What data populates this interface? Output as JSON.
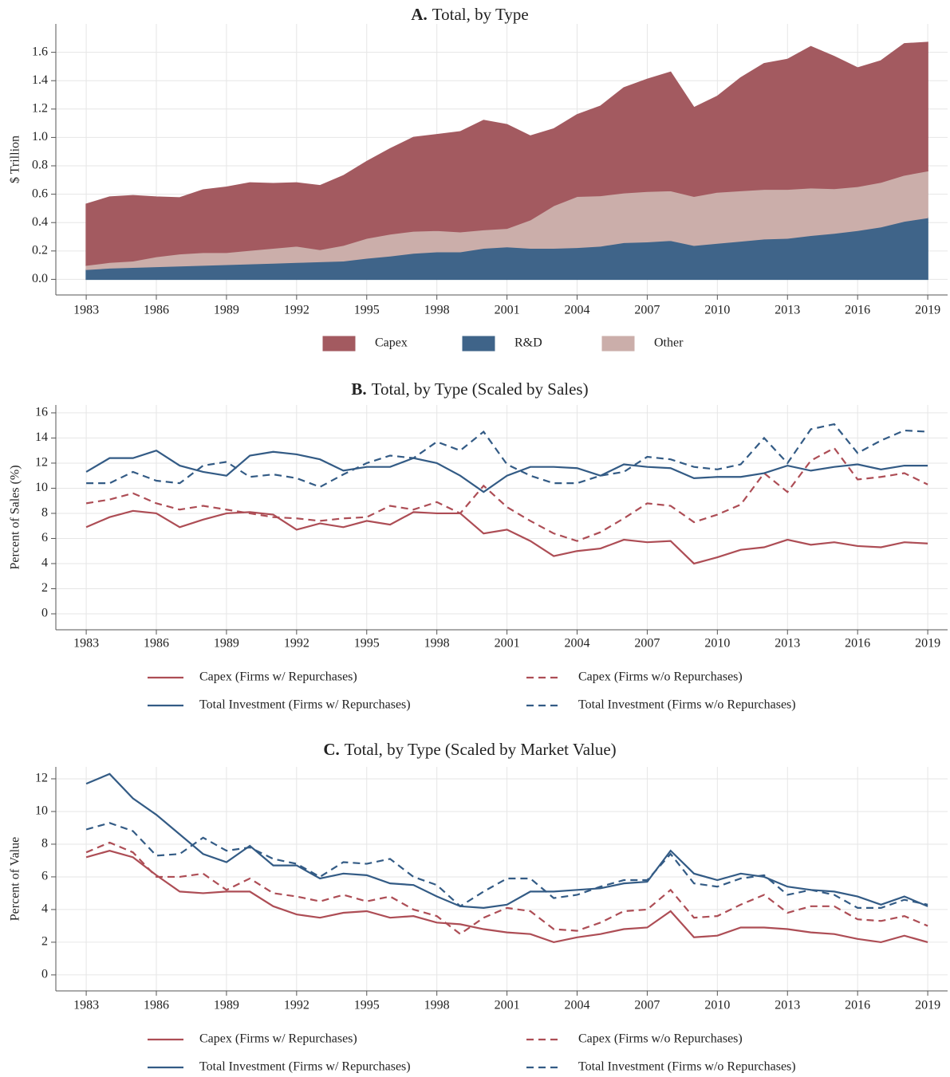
{
  "chart_data": [
    {
      "type": "area",
      "stacked": true,
      "panel": "A.",
      "title": "Total, by Type",
      "ylabel": "$ Trillion",
      "x": [
        1983,
        1984,
        1985,
        1986,
        1987,
        1988,
        1989,
        1990,
        1991,
        1992,
        1993,
        1994,
        1995,
        1996,
        1997,
        1998,
        1999,
        2000,
        2001,
        2002,
        2003,
        2004,
        2005,
        2006,
        2007,
        2008,
        2009,
        2010,
        2011,
        2012,
        2013,
        2014,
        2015,
        2016,
        2017,
        2018,
        2019
      ],
      "xlim": [
        1981.7,
        2019.85
      ],
      "xticks": [
        1983,
        1986,
        1989,
        1992,
        1995,
        1998,
        2001,
        2004,
        2007,
        2010,
        2013,
        2016,
        2019
      ],
      "ylim": [
        -0.11,
        1.8
      ],
      "yticks": [
        {
          "value": 0,
          "label": "0.0"
        },
        0.2,
        0.4,
        0.6,
        0.8,
        {
          "value": 1,
          "label": "1.0"
        },
        1.2,
        1.4,
        1.6
      ],
      "grid": true,
      "series": [
        {
          "name": "R&D",
          "color": "#3f6489",
          "values": [
            0.07,
            0.08,
            0.085,
            0.09,
            0.095,
            0.1,
            0.105,
            0.11,
            0.115,
            0.12,
            0.125,
            0.13,
            0.15,
            0.165,
            0.185,
            0.195,
            0.195,
            0.22,
            0.23,
            0.22,
            0.22,
            0.225,
            0.235,
            0.26,
            0.265,
            0.275,
            0.24,
            0.255,
            0.27,
            0.285,
            0.29,
            0.31,
            0.325,
            0.345,
            0.37,
            0.41,
            0.435
          ]
        },
        {
          "name": "Other",
          "color": "#cbaeaa",
          "values": [
            0.03,
            0.04,
            0.045,
            0.07,
            0.085,
            0.09,
            0.085,
            0.095,
            0.105,
            0.115,
            0.085,
            0.11,
            0.14,
            0.155,
            0.155,
            0.15,
            0.14,
            0.13,
            0.13,
            0.2,
            0.3,
            0.36,
            0.355,
            0.35,
            0.355,
            0.35,
            0.345,
            0.36,
            0.355,
            0.35,
            0.345,
            0.335,
            0.315,
            0.31,
            0.315,
            0.325,
            0.33
          ]
        },
        {
          "name": "Capex",
          "color": "#a35a60",
          "values": [
            0.43,
            0.46,
            0.46,
            0.42,
            0.395,
            0.44,
            0.46,
            0.475,
            0.455,
            0.445,
            0.45,
            0.49,
            0.54,
            0.6,
            0.66,
            0.675,
            0.705,
            0.77,
            0.73,
            0.59,
            0.54,
            0.575,
            0.63,
            0.74,
            0.79,
            0.835,
            0.625,
            0.675,
            0.795,
            0.885,
            0.915,
            0.995,
            0.93,
            0.835,
            0.855,
            0.925,
            0.905
          ]
        }
      ]
    },
    {
      "type": "line",
      "panel": "B.",
      "title": "Total, by Type (Scaled by Sales)",
      "ylabel": "Percent of Sales (%)",
      "x": [
        1983,
        1984,
        1985,
        1986,
        1987,
        1988,
        1989,
        1990,
        1991,
        1992,
        1993,
        1994,
        1995,
        1996,
        1997,
        1998,
        1999,
        2000,
        2001,
        2002,
        2003,
        2004,
        2005,
        2006,
        2007,
        2008,
        2009,
        2010,
        2011,
        2012,
        2013,
        2014,
        2015,
        2016,
        2017,
        2018,
        2019
      ],
      "xlim": [
        1981.7,
        2019.85
      ],
      "xticks": [
        1983,
        1986,
        1989,
        1992,
        1995,
        1998,
        2001,
        2004,
        2007,
        2010,
        2013,
        2016,
        2019
      ],
      "ylim": [
        -1.27,
        16.63
      ],
      "yticks": [
        0,
        2,
        4,
        6,
        8,
        10,
        12,
        14,
        16
      ],
      "grid": true,
      "series": [
        {
          "name": "Capex (Firms w/ Repurchases)",
          "color": "#ad4d55",
          "dashed": false,
          "values": [
            6.9,
            7.7,
            8.2,
            8.0,
            6.9,
            7.5,
            8.0,
            8.1,
            7.9,
            6.7,
            7.2,
            6.9,
            7.4,
            7.1,
            8.1,
            8.0,
            8.0,
            6.4,
            6.7,
            5.8,
            4.6,
            5.0,
            5.2,
            5.9,
            5.7,
            5.8,
            4.0,
            4.5,
            5.1,
            5.3,
            5.9,
            5.5,
            5.7,
            5.4,
            5.3,
            5.7,
            5.6
          ]
        },
        {
          "name": "Capex (Firms w/o Repurchases)",
          "color": "#ad4d55",
          "dashed": true,
          "values": [
            8.8,
            9.1,
            9.6,
            8.8,
            8.3,
            8.6,
            8.3,
            8.0,
            7.7,
            7.6,
            7.4,
            7.6,
            7.7,
            8.6,
            8.3,
            8.9,
            8.0,
            10.2,
            8.5,
            7.4,
            6.4,
            5.8,
            6.5,
            7.6,
            8.8,
            8.6,
            7.3,
            7.9,
            8.7,
            11.2,
            9.7,
            12.2,
            13.2,
            10.7,
            10.9,
            11.2,
            10.3
          ]
        },
        {
          "name": "Total Investment (Firms w/ Repurchases)",
          "color": "#335b85",
          "dashed": false,
          "values": [
            11.3,
            12.4,
            12.4,
            13.0,
            11.8,
            11.3,
            11.0,
            12.6,
            12.9,
            12.7,
            12.3,
            11.4,
            11.7,
            11.7,
            12.4,
            12.0,
            11.0,
            9.7,
            11.0,
            11.7,
            11.7,
            11.6,
            11.0,
            11.9,
            11.7,
            11.6,
            10.8,
            10.9,
            10.9,
            11.2,
            11.8,
            11.4,
            11.7,
            11.9,
            11.5,
            11.8,
            11.8
          ]
        },
        {
          "name": "Total Investment (Firms w/o Repurchases)",
          "color": "#335b85",
          "dashed": true,
          "values": [
            10.4,
            10.4,
            11.3,
            10.6,
            10.4,
            11.8,
            12.1,
            10.9,
            11.1,
            10.8,
            10.1,
            11.1,
            12.0,
            12.6,
            12.4,
            13.7,
            13.0,
            14.5,
            11.9,
            11.0,
            10.4,
            10.4,
            11.0,
            11.3,
            12.5,
            12.3,
            11.7,
            11.5,
            11.9,
            14.0,
            12.0,
            14.7,
            15.1,
            12.8,
            13.8,
            14.6,
            14.5
          ]
        }
      ]
    },
    {
      "type": "line",
      "panel": "C.",
      "title": "Total, by Type (Scaled by Market Value)",
      "ylabel": "Percent of Value",
      "x": [
        1983,
        1984,
        1985,
        1986,
        1987,
        1988,
        1989,
        1990,
        1991,
        1992,
        1993,
        1994,
        1995,
        1996,
        1997,
        1998,
        1999,
        2000,
        2001,
        2002,
        2003,
        2004,
        2005,
        2006,
        2007,
        2008,
        2009,
        2010,
        2011,
        2012,
        2013,
        2014,
        2015,
        2016,
        2017,
        2018,
        2019
      ],
      "xlim": [
        1981.7,
        2019.85
      ],
      "xticks": [
        1983,
        1986,
        1989,
        1992,
        1995,
        1998,
        2001,
        2004,
        2007,
        2010,
        2013,
        2016,
        2019
      ],
      "ylim": [
        -0.98,
        12.73
      ],
      "yticks": [
        0,
        2,
        4,
        6,
        8,
        10,
        12
      ],
      "grid": true,
      "series": [
        {
          "name": "Capex (Firms w/ Repurchases)",
          "color": "#ad4d55",
          "dashed": false,
          "values": [
            7.2,
            7.6,
            7.2,
            6.1,
            5.1,
            5.0,
            5.1,
            5.1,
            4.2,
            3.7,
            3.5,
            3.8,
            3.9,
            3.5,
            3.6,
            3.2,
            3.1,
            2.8,
            2.6,
            2.5,
            2.0,
            2.3,
            2.5,
            2.8,
            2.9,
            3.9,
            2.3,
            2.4,
            2.9,
            2.9,
            2.8,
            2.6,
            2.5,
            2.2,
            2.0,
            2.4,
            2.0
          ]
        },
        {
          "name": "Capex (Firms w/o Repurchases)",
          "color": "#ad4d55",
          "dashed": true,
          "values": [
            7.5,
            8.1,
            7.5,
            6.0,
            6.0,
            6.2,
            5.2,
            5.9,
            5.0,
            4.8,
            4.5,
            4.9,
            4.5,
            4.8,
            4.0,
            3.6,
            2.5,
            3.5,
            4.1,
            3.9,
            2.8,
            2.7,
            3.2,
            3.9,
            4.0,
            5.2,
            3.5,
            3.6,
            4.3,
            4.9,
            3.8,
            4.2,
            4.2,
            3.4,
            3.3,
            3.6,
            3.0
          ]
        },
        {
          "name": "Total Investment (Firms w/ Repurchases)",
          "color": "#335b85",
          "dashed": false,
          "values": [
            11.7,
            12.3,
            10.8,
            9.8,
            8.6,
            7.4,
            6.9,
            7.9,
            6.7,
            6.7,
            5.9,
            6.2,
            6.1,
            5.6,
            5.5,
            4.8,
            4.2,
            4.1,
            4.3,
            5.1,
            5.1,
            5.2,
            5.3,
            5.6,
            5.7,
            7.6,
            6.2,
            5.8,
            6.2,
            6.0,
            5.4,
            5.2,
            5.1,
            4.8,
            4.3,
            4.8,
            4.2
          ]
        },
        {
          "name": "Total Investment (Firms w/o Repurchases)",
          "color": "#335b85",
          "dashed": true,
          "values": [
            8.9,
            9.3,
            8.8,
            7.3,
            7.4,
            8.4,
            7.6,
            7.8,
            7.1,
            6.8,
            6.0,
            6.9,
            6.8,
            7.1,
            6.0,
            5.5,
            4.2,
            5.1,
            5.9,
            5.9,
            4.7,
            4.9,
            5.4,
            5.8,
            5.8,
            7.4,
            5.6,
            5.4,
            5.9,
            6.1,
            4.9,
            5.2,
            4.9,
            4.1,
            4.1,
            4.6,
            4.3
          ]
        }
      ]
    }
  ]
}
